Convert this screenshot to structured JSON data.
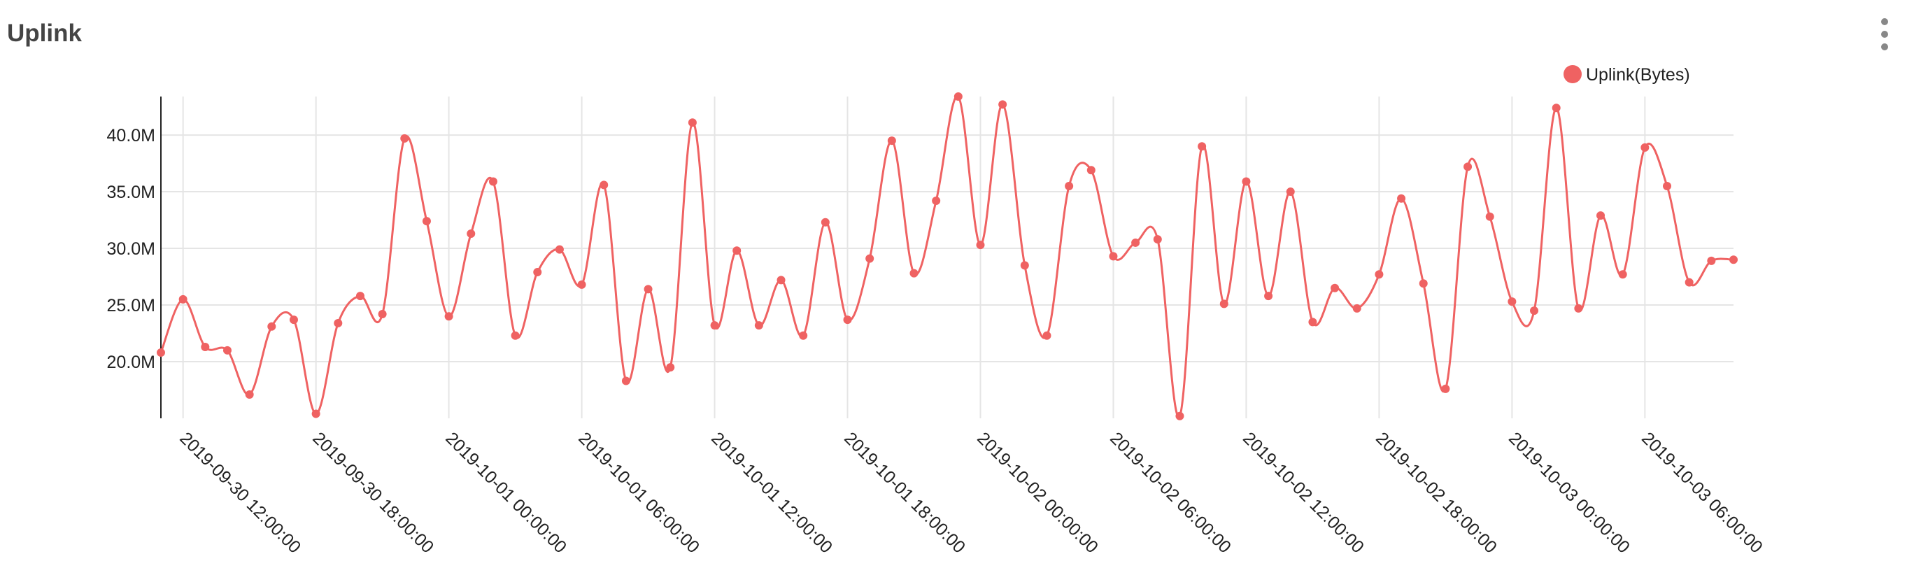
{
  "panel": {
    "title": "Uplink"
  },
  "menu": {
    "icon": "vertical-ellipsis-icon"
  },
  "colors": {
    "series": "#ef6262",
    "grid": "#e5e5e5",
    "axis": "#222222",
    "title": "#444444"
  },
  "chart_data": {
    "type": "line",
    "title": "",
    "xlabel": "",
    "ylabel": "",
    "curve": "smooth",
    "grid": true,
    "legend_position": "top-right",
    "x_start": "2019-09-30 11:00:00",
    "x_end": "2019-10-03 10:00:00",
    "x_ticks": [
      "2019-09-30 12:00:00",
      "2019-09-30 18:00:00",
      "2019-10-01 00:00:00",
      "2019-10-01 06:00:00",
      "2019-10-01 12:00:00",
      "2019-10-01 18:00:00",
      "2019-10-02 00:00:00",
      "2019-10-02 06:00:00",
      "2019-10-02 12:00:00",
      "2019-10-02 18:00:00",
      "2019-10-03 00:00:00",
      "2019-10-03 06:00:00"
    ],
    "y_ticks": [
      20000000,
      25000000,
      30000000,
      35000000,
      40000000
    ],
    "y_tick_labels": [
      "20.0M",
      "25.0M",
      "30.0M",
      "35.0M",
      "40.0M"
    ],
    "ylim": [
      15000000,
      43400000
    ],
    "series": [
      {
        "name": "Uplink(Bytes)",
        "color": "#ef6262",
        "x": [
          "2019-09-30 11:00:00",
          "2019-09-30 12:00:00",
          "2019-09-30 13:00:00",
          "2019-09-30 14:00:00",
          "2019-09-30 15:00:00",
          "2019-09-30 16:00:00",
          "2019-09-30 17:00:00",
          "2019-09-30 18:00:00",
          "2019-09-30 19:00:00",
          "2019-09-30 20:00:00",
          "2019-09-30 21:00:00",
          "2019-09-30 22:00:00",
          "2019-09-30 23:00:00",
          "2019-10-01 00:00:00",
          "2019-10-01 01:00:00",
          "2019-10-01 02:00:00",
          "2019-10-01 03:00:00",
          "2019-10-01 04:00:00",
          "2019-10-01 05:00:00",
          "2019-10-01 06:00:00",
          "2019-10-01 07:00:00",
          "2019-10-01 08:00:00",
          "2019-10-01 09:00:00",
          "2019-10-01 10:00:00",
          "2019-10-01 11:00:00",
          "2019-10-01 12:00:00",
          "2019-10-01 13:00:00",
          "2019-10-01 14:00:00",
          "2019-10-01 15:00:00",
          "2019-10-01 16:00:00",
          "2019-10-01 17:00:00",
          "2019-10-01 18:00:00",
          "2019-10-01 19:00:00",
          "2019-10-01 20:00:00",
          "2019-10-01 21:00:00",
          "2019-10-01 22:00:00",
          "2019-10-01 23:00:00",
          "2019-10-02 00:00:00",
          "2019-10-02 01:00:00",
          "2019-10-02 02:00:00",
          "2019-10-02 03:00:00",
          "2019-10-02 04:00:00",
          "2019-10-02 05:00:00",
          "2019-10-02 06:00:00",
          "2019-10-02 07:00:00",
          "2019-10-02 08:00:00",
          "2019-10-02 09:00:00",
          "2019-10-02 10:00:00",
          "2019-10-02 11:00:00",
          "2019-10-02 12:00:00",
          "2019-10-02 13:00:00",
          "2019-10-02 14:00:00",
          "2019-10-02 15:00:00",
          "2019-10-02 16:00:00",
          "2019-10-02 17:00:00",
          "2019-10-02 18:00:00",
          "2019-10-02 19:00:00",
          "2019-10-02 20:00:00",
          "2019-10-02 21:00:00",
          "2019-10-02 22:00:00",
          "2019-10-02 23:00:00",
          "2019-10-03 00:00:00",
          "2019-10-03 01:00:00",
          "2019-10-03 02:00:00",
          "2019-10-03 03:00:00",
          "2019-10-03 04:00:00",
          "2019-10-03 05:00:00",
          "2019-10-03 06:00:00",
          "2019-10-03 07:00:00",
          "2019-10-03 08:00:00",
          "2019-10-03 09:00:00",
          "2019-10-03 10:00:00"
        ],
        "values": [
          20800000,
          25500000,
          21300000,
          21000000,
          17100000,
          23100000,
          23700000,
          15400000,
          23400000,
          25800000,
          24200000,
          39700000,
          32400000,
          24000000,
          31300000,
          35900000,
          22300000,
          27900000,
          29900000,
          26800000,
          35600000,
          18300000,
          26400000,
          19500000,
          41100000,
          23200000,
          29800000,
          23200000,
          27200000,
          22300000,
          32300000,
          23700000,
          29100000,
          39500000,
          27800000,
          34200000,
          43400000,
          30300000,
          42700000,
          28500000,
          22300000,
          35500000,
          36900000,
          29300000,
          30500000,
          30800000,
          15200000,
          39000000,
          25100000,
          35900000,
          25800000,
          35000000,
          23500000,
          26500000,
          24700000,
          27700000,
          34400000,
          26900000,
          17600000,
          37200000,
          32800000,
          25300000,
          24500000,
          42400000,
          24700000,
          32900000,
          27700000,
          38900000,
          35500000,
          27000000,
          28900000,
          29000000
        ]
      }
    ]
  }
}
